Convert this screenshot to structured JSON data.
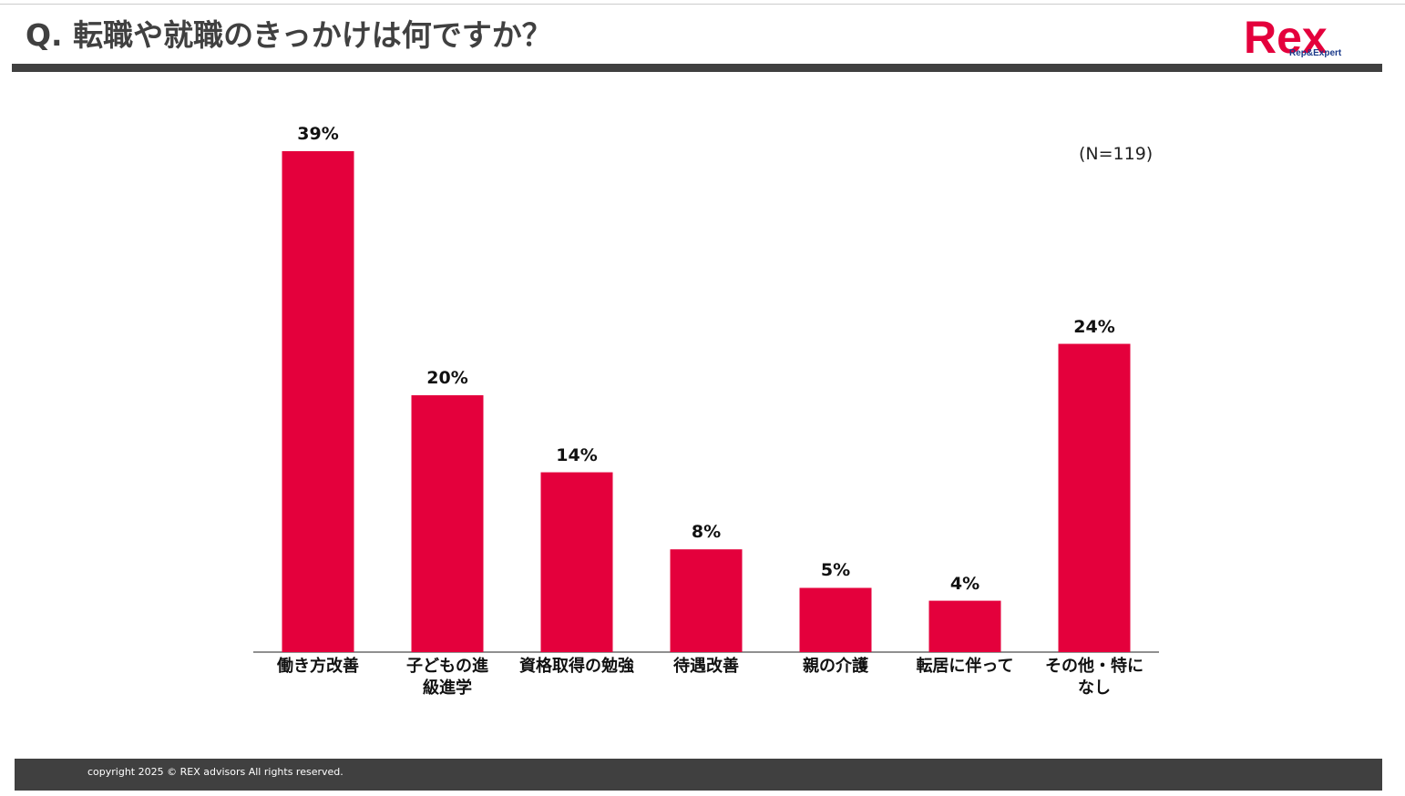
{
  "header": {
    "title": "Q. 転職や就職のきっかけは何ですか？",
    "logo_main": "Rex",
    "logo_sub": "Rep&Expert"
  },
  "chart_data": {
    "type": "bar",
    "note": "(N=119)",
    "color": "#e4003c",
    "categories": [
      "働き方改善",
      "子どもの進\n級進学",
      "資格取得の勉強",
      "待遇改善",
      "親の介護",
      "転居に伴って",
      "その他・特に\nなし"
    ],
    "values": [
      39,
      20,
      14,
      8,
      5,
      4,
      24
    ],
    "value_labels": [
      "39%",
      "20%",
      "14%",
      "8%",
      "5%",
      "4%",
      "24%"
    ]
  },
  "footer": {
    "copyright": "copyright 2025 © REX advisors All rights reserved."
  }
}
